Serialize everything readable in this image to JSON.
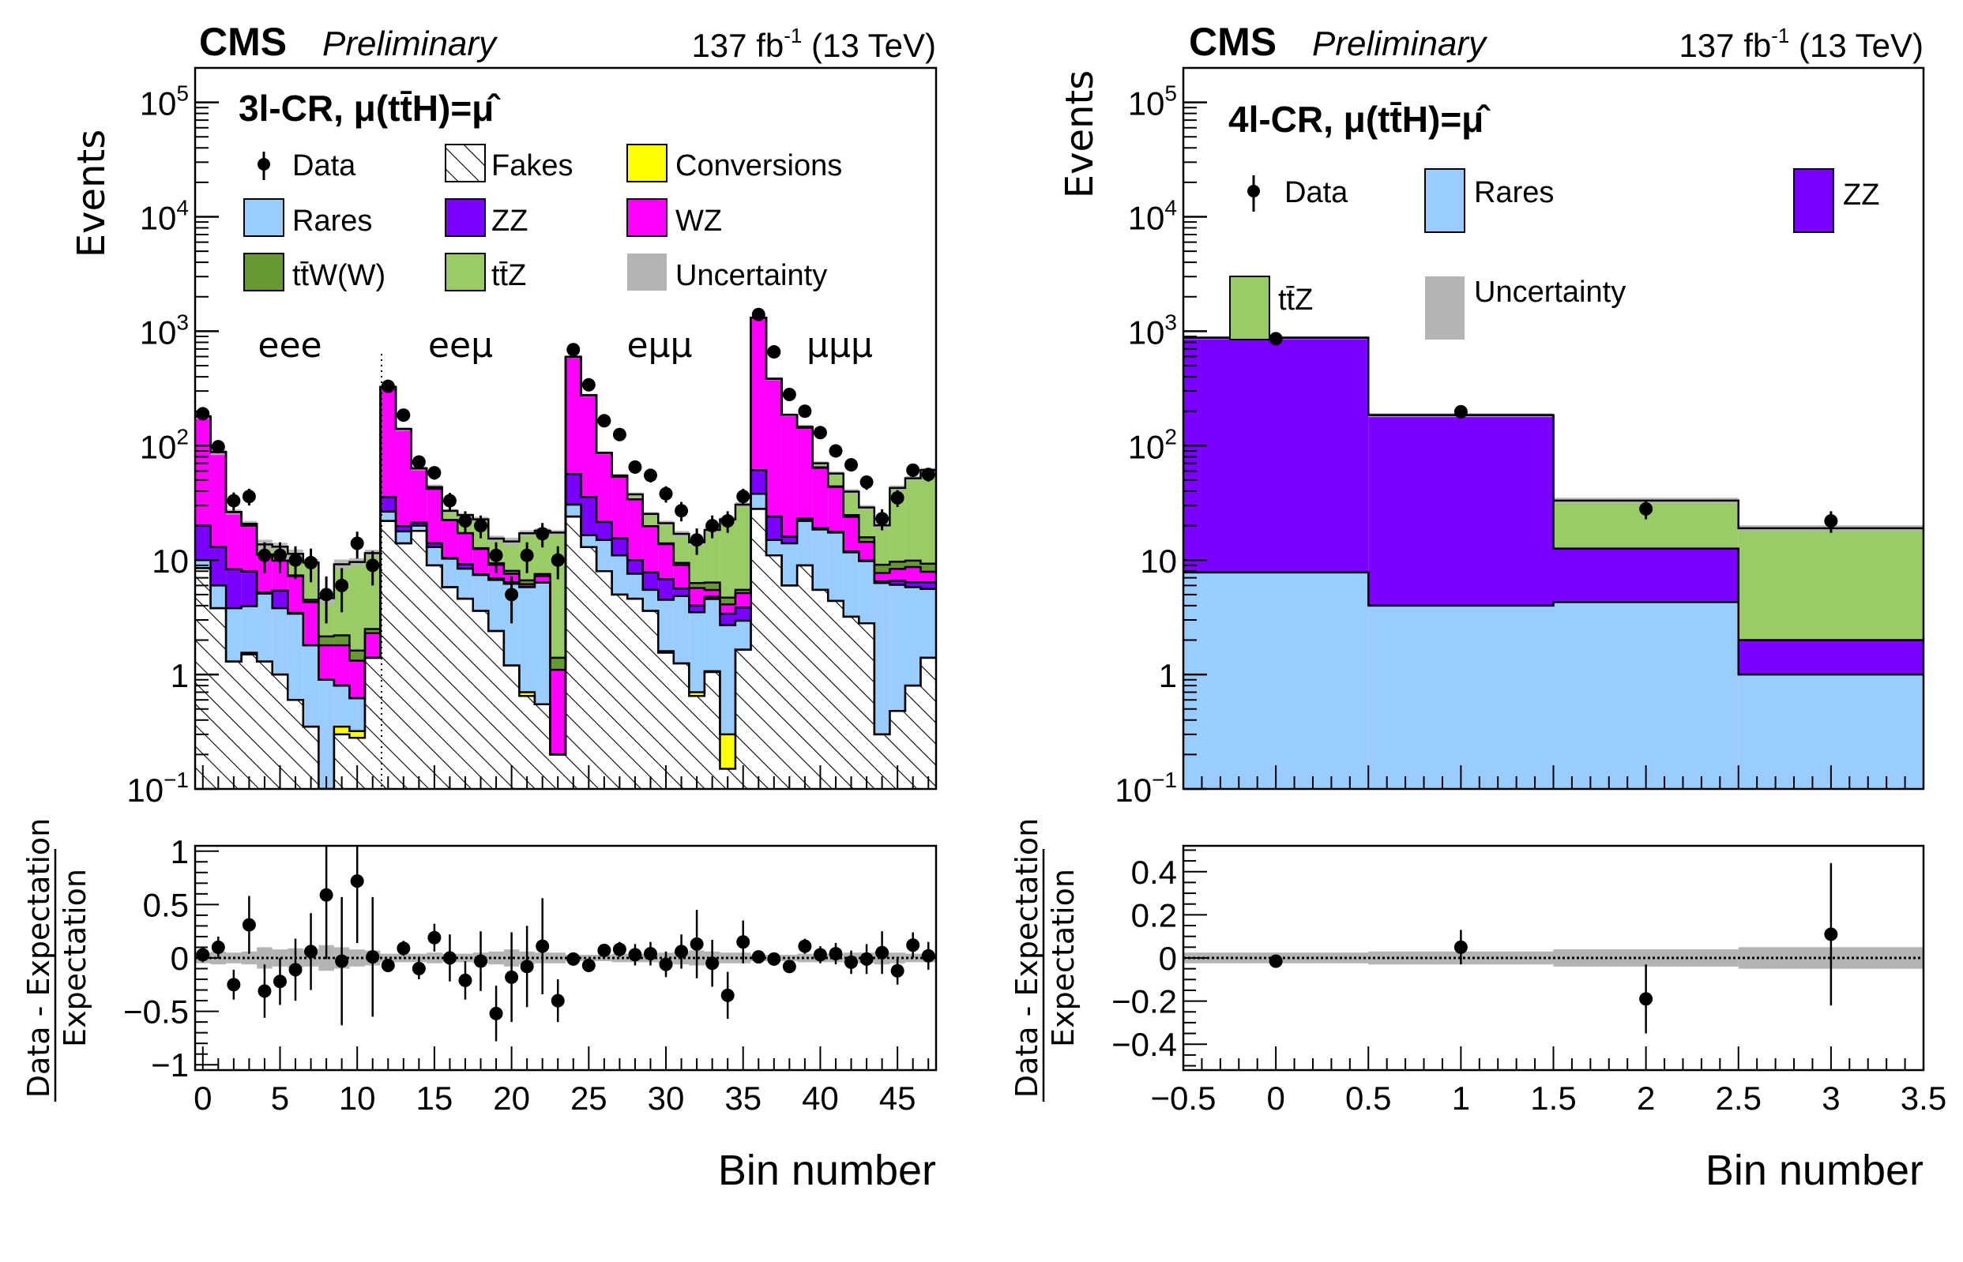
{
  "header": {
    "experiment": "CMS",
    "status": "Preliminary",
    "lumi_value": "137 fb",
    "lumi_exp": "-1",
    "energy": " (13 TeV)"
  },
  "colors": {
    "fakes": "#ffffff",
    "conversions": "#ffff00",
    "rares": "#99ccff",
    "zz": "#7b00ff",
    "wz": "#ff00ff",
    "ttw": "#669933",
    "ttz": "#99cc66",
    "uncertainty": "#b4b4b4",
    "data": "#000000"
  },
  "chart_data": [
    {
      "type": "bar",
      "stacked": true,
      "title": "3l-CR, μ(tt̄H)=μ̂",
      "xlabel": "Bin number",
      "ylabel": "Events",
      "yscale": "log",
      "ylim": [
        0.1,
        200000
      ],
      "xlim": [
        -0.5,
        47.5
      ],
      "y_ticks": [
        "10^-1",
        "1",
        "10",
        "10^2",
        "10^3",
        "10^4",
        "10^5"
      ],
      "x_ticks": [
        "0",
        "5",
        "10",
        "15",
        "20",
        "25",
        "30",
        "35",
        "40",
        "45"
      ],
      "region_labels": [
        "eee",
        "eeμ",
        "eμμ",
        "μμμ"
      ],
      "legend": [
        "Data",
        "Fakes",
        "Conversions",
        "Rares",
        "ZZ",
        "WZ",
        "tt̄W(W)",
        "tt̄Z",
        "Uncertainty"
      ],
      "x": [
        0,
        1,
        2,
        3,
        4,
        5,
        6,
        7,
        8,
        9,
        10,
        11,
        12,
        13,
        14,
        15,
        16,
        17,
        18,
        19,
        20,
        21,
        22,
        23,
        24,
        25,
        26,
        27,
        28,
        29,
        30,
        31,
        32,
        33,
        34,
        35,
        36,
        37,
        38,
        39,
        40,
        41,
        42,
        43,
        44,
        45,
        46,
        47
      ],
      "series": [
        {
          "name": "Fakes",
          "values": [
            8.5,
            3.8,
            1.3,
            1.5,
            1.3,
            1.0,
            0.6,
            0.35,
            0.1,
            0.3,
            0.28,
            1.4,
            22,
            14,
            18,
            9,
            5.8,
            4.6,
            3.6,
            2.4,
            1.2,
            0.65,
            0.55,
            0.2,
            24,
            13,
            8,
            5,
            4.6,
            3.6,
            1.55,
            1.25,
            0.65,
            1.05,
            0.15,
            1.65,
            28,
            11,
            6,
            9,
            5.5,
            4.4,
            3.2,
            2.8,
            0.3,
            0.48,
            0.8,
            1.4
          ]
        },
        {
          "name": "Conversions",
          "values": [
            0,
            0,
            0,
            0.05,
            0,
            0,
            0,
            0,
            0,
            0.05,
            0.04,
            0,
            0,
            0,
            0,
            0,
            0,
            0,
            0,
            0,
            0,
            0.05,
            0,
            0,
            0,
            0,
            0,
            0,
            0,
            0,
            0.05,
            0,
            0.05,
            0.02,
            0.15,
            0,
            0,
            0,
            0,
            0,
            0,
            0,
            0,
            0,
            0,
            0,
            0,
            0
          ]
        },
        {
          "name": "Rares",
          "values": [
            1.5,
            2.2,
            2.5,
            2.4,
            3.8,
            2.8,
            2.8,
            1.45,
            0.8,
            0.45,
            0.3,
            0,
            4.5,
            3.8,
            2,
            4,
            4.5,
            3.8,
            3.8,
            4.3,
            5,
            5.1,
            5.8,
            0,
            6.5,
            3.5,
            7,
            6,
            3,
            1.9,
            2.9,
            3.6,
            2.8,
            3.5,
            2.4,
            1.3,
            10,
            4,
            8,
            13,
            13,
            13,
            8.5,
            7,
            6,
            5.6,
            5,
            4.2
          ]
        },
        {
          "name": "ZZ",
          "values": [
            10,
            7,
            4.5,
            4,
            0.1,
            1.6,
            0.05,
            0,
            0,
            0,
            0,
            0,
            9,
            2,
            1.2,
            1,
            0.1,
            0.8,
            0.1,
            0.2,
            0.2,
            0.05,
            0,
            0,
            26,
            19,
            6.5,
            4.5,
            2.4,
            2.3,
            2.3,
            0.8,
            0.5,
            0.2,
            0.7,
            0.9,
            23,
            9,
            2,
            1,
            0.5,
            0.2,
            0.2,
            0.1,
            0.2,
            0.5,
            0.6,
            0.8
          ]
        },
        {
          "name": "WZ",
          "values": [
            160,
            75,
            18,
            12,
            6,
            4.5,
            3.8,
            2.5,
            0.9,
            1,
            0.7,
            0.9,
            290,
            120,
            42,
            28,
            12,
            8,
            5,
            2.2,
            1.2,
            0.3,
            0.9,
            0.9,
            540,
            240,
            65,
            38,
            24,
            12,
            7,
            3.4,
            1.7,
            0.7,
            0.7,
            1.3,
            1250,
            360,
            170,
            120,
            45,
            26,
            12,
            4.5,
            1.2,
            1.8,
            2.3,
            1.5
          ]
        },
        {
          "name": "ttW(W)",
          "values": [
            0,
            0,
            0,
            0,
            0,
            0,
            0.1,
            0.2,
            0.35,
            0.4,
            0.3,
            0.2,
            0,
            0,
            0,
            0,
            0,
            0,
            0.2,
            0.3,
            0.45,
            0.5,
            0.3,
            0.3,
            0,
            0,
            0,
            0,
            0,
            0,
            0.2,
            0.4,
            0.6,
            0.9,
            0.6,
            0.35,
            0,
            0,
            0,
            0,
            0.6,
            0.5,
            0.8,
            1.4,
            1.4,
            1.3,
            1.2,
            1.4
          ]
        },
        {
          "name": "ttZ",
          "values": [
            0,
            0,
            0,
            0.8,
            2.5,
            3.2,
            4,
            5,
            2.5,
            7,
            8,
            9,
            0,
            0,
            0,
            1.5,
            4.5,
            7.5,
            10,
            6,
            6.5,
            10.5,
            10.5,
            16,
            0,
            0,
            0,
            1.2,
            3.5,
            5.5,
            7,
            7.5,
            8,
            12,
            18,
            25,
            0,
            0,
            0,
            3,
            5.5,
            13,
            15,
            13,
            11,
            33,
            42,
            52
          ]
        }
      ],
      "uncertainty_rel": [
        0.05,
        0.06,
        0.05,
        0.06,
        0.1,
        0.08,
        0.09,
        0.08,
        0.12,
        0.1,
        0.08,
        0.07,
        0.04,
        0.04,
        0.04,
        0.05,
        0.04,
        0.04,
        0.05,
        0.06,
        0.08,
        0.06,
        0.05,
        0.05,
        0.03,
        0.03,
        0.03,
        0.04,
        0.04,
        0.04,
        0.05,
        0.06,
        0.07,
        0.06,
        0.05,
        0.05,
        0.03,
        0.03,
        0.03,
        0.04,
        0.04,
        0.04,
        0.05,
        0.05,
        0.06,
        0.05,
        0.04,
        0.04
      ],
      "data": {
        "values": [
          190,
          98,
          33,
          36,
          11,
          11,
          10,
          9.5,
          5,
          6,
          14,
          9,
          330,
          185,
          72,
          58,
          33,
          22,
          20,
          11,
          5,
          11,
          17,
          10,
          690,
          340,
          165,
          125,
          65,
          55,
          38,
          27,
          15,
          20,
          22,
          36,
          1400,
          660,
          280,
          200,
          130,
          90,
          68,
          48,
          23,
          35,
          61,
          56
        ],
        "errors": [
          14,
          10,
          6,
          6,
          3.3,
          3.3,
          3.2,
          3.1,
          2.2,
          2.5,
          3.7,
          3,
          18,
          14,
          8.5,
          7.6,
          5.7,
          4.7,
          4.5,
          3.3,
          2.2,
          3.3,
          4.1,
          3.2,
          26,
          18,
          13,
          11,
          8,
          7.4,
          6.2,
          5.2,
          3.9,
          4.5,
          4.7,
          6,
          37,
          26,
          17,
          14,
          11,
          9.5,
          8.2,
          6.9,
          4.8,
          5.9,
          7.8,
          7.5
        ]
      },
      "ratio": {
        "ylabel": "Data - Expectation / Expectation",
        "ylim": [
          -1.05,
          1.05
        ],
        "y_ticks": [
          "−1",
          "−0.5",
          "0",
          "0.5",
          "1"
        ],
        "values": [
          0.03,
          0.1,
          -0.25,
          0.31,
          -0.31,
          -0.22,
          -0.11,
          0.06,
          0.59,
          -0.03,
          0.72,
          0.01,
          -0.07,
          0.09,
          -0.1,
          0.19,
          0.0,
          -0.21,
          -0.03,
          -0.52,
          -0.18,
          -0.08,
          0.11,
          -0.4,
          -0.01,
          -0.07,
          0.07,
          0.08,
          0.03,
          0.04,
          -0.06,
          0.06,
          0.13,
          -0.05,
          -0.35,
          0.15,
          0.01,
          -0.01,
          -0.08,
          0.11,
          0.03,
          0.04,
          -0.04,
          -0.01,
          0.05,
          -0.12,
          0.12,
          0.02
        ],
        "errors": [
          0.07,
          0.1,
          0.14,
          0.27,
          0.25,
          0.22,
          0.29,
          0.36,
          0.6,
          0.6,
          0.58,
          0.56,
          0.06,
          0.07,
          0.1,
          0.13,
          0.22,
          0.18,
          0.28,
          0.26,
          0.42,
          0.38,
          0.45,
          0.2,
          0.03,
          0.05,
          0.06,
          0.07,
          0.1,
          0.11,
          0.12,
          0.16,
          0.32,
          0.22,
          0.22,
          0.2,
          0.03,
          0.04,
          0.06,
          0.07,
          0.08,
          0.1,
          0.11,
          0.14,
          0.2,
          0.13,
          0.12,
          0.13
        ]
      }
    },
    {
      "type": "bar",
      "stacked": true,
      "title": "4l-CR, μ(tt̄H)=μ̂",
      "xlabel": "Bin number",
      "ylabel": "Events",
      "yscale": "log",
      "ylim": [
        0.1,
        200000
      ],
      "xlim": [
        -0.5,
        3.5
      ],
      "y_ticks": [
        "10^-1",
        "1",
        "10",
        "10^2",
        "10^3",
        "10^4",
        "10^5"
      ],
      "x_ticks": [
        "−0.5",
        "0",
        "0.5",
        "1",
        "1.5",
        "2",
        "2.5",
        "3",
        "3.5"
      ],
      "legend": [
        "Data",
        "Rares",
        "ZZ",
        "tt̄Z",
        "Uncertainty"
      ],
      "x": [
        0,
        1,
        2,
        3
      ],
      "series": [
        {
          "name": "Rares",
          "values": [
            7.8,
            4.0,
            4.3,
            1.0
          ]
        },
        {
          "name": "ZZ",
          "values": [
            870,
            181,
            8.3,
            1.0
          ]
        },
        {
          "name": "ttZ",
          "values": [
            0,
            0,
            20.5,
            17
          ]
        }
      ],
      "uncertainty_rel": [
        0.03,
        0.04,
        0.06,
        0.06
      ],
      "data": {
        "values": [
          860,
          198,
          28,
          22
        ],
        "errors": [
          29,
          14,
          5.3,
          4.7
        ]
      },
      "ratio": {
        "ylabel": "Data - Expectation / Expectation",
        "ylim": [
          -0.52,
          0.52
        ],
        "y_ticks": [
          "−0.4",
          "−0.2",
          "0",
          "0.2",
          "0.4"
        ],
        "values": [
          -0.015,
          0.05,
          -0.19,
          0.11
        ],
        "errors": [
          0.03,
          0.08,
          0.16,
          0.33
        ],
        "band": [
          0.025,
          0.03,
          0.04,
          0.05
        ]
      }
    }
  ]
}
